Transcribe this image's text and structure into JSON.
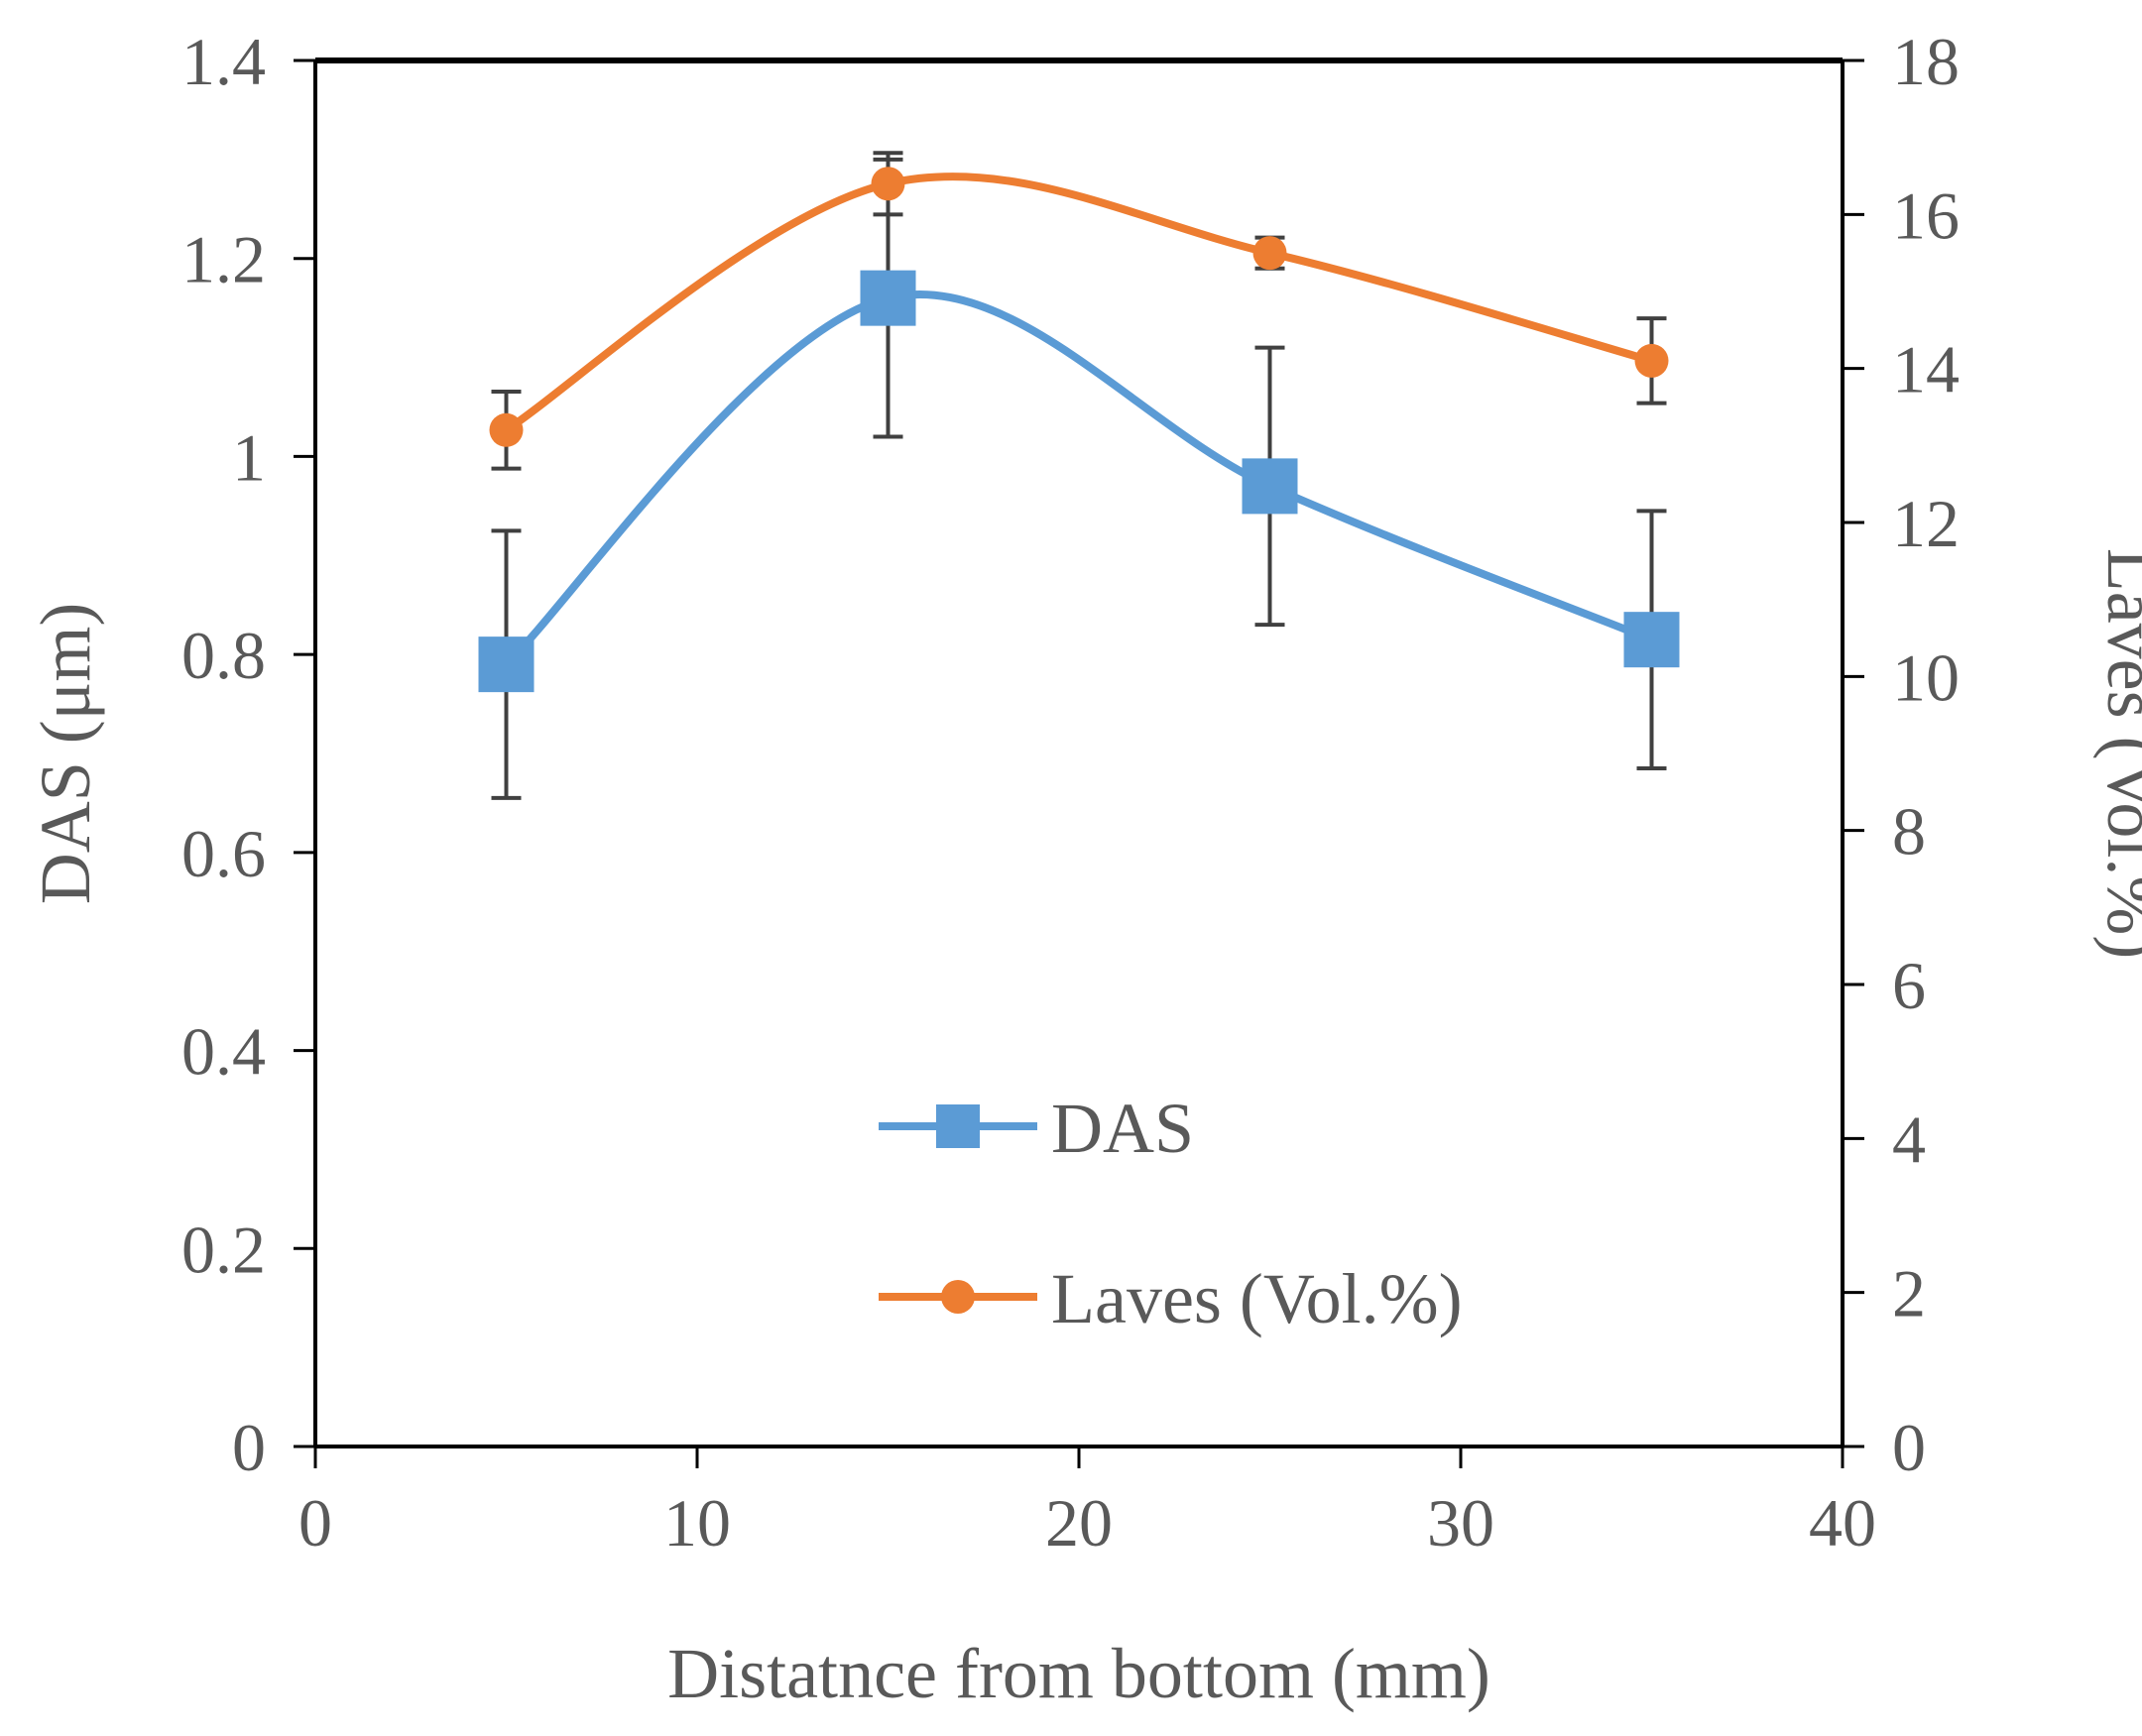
{
  "chart_data": {
    "type": "line",
    "title": "",
    "xlabel": "Distatnce from bottom (mm)",
    "ylabel": "DAS (μm)",
    "y2label": "Laves (Vol.%)",
    "xlim": [
      0,
      40
    ],
    "ylim": [
      0,
      1.4
    ],
    "y2lim": [
      0,
      18
    ],
    "x_ticks": [
      "0",
      "10",
      "20",
      "30",
      "40"
    ],
    "y_ticks": [
      "0",
      "0.2",
      "0.4",
      "0.6",
      "0.8",
      "1",
      "1.2",
      "1.4"
    ],
    "y2_ticks": [
      "0",
      "2",
      "4",
      "6",
      "8",
      "10",
      "12",
      "14",
      "16",
      "18"
    ],
    "grid": false,
    "legend_position": "bottom-center",
    "series": [
      {
        "name": "DAS",
        "axis": "left",
        "color": "#5B9BD5",
        "marker": "square",
        "smooth": true,
        "x": [
          5,
          15,
          25,
          35
        ],
        "values": [
          0.79,
          1.16,
          0.97,
          0.815
        ],
        "error": [
          0.135,
          0.14,
          0.14,
          0.13
        ]
      },
      {
        "name": "Laves (Vol.%)",
        "axis": "right",
        "color": "#ED7D31",
        "marker": "circle",
        "smooth": true,
        "x": [
          5,
          15,
          25,
          35
        ],
        "values": [
          13.2,
          16.4,
          15.5,
          14.1
        ],
        "error": [
          0.5,
          0.4,
          0.2,
          0.55
        ]
      }
    ]
  }
}
